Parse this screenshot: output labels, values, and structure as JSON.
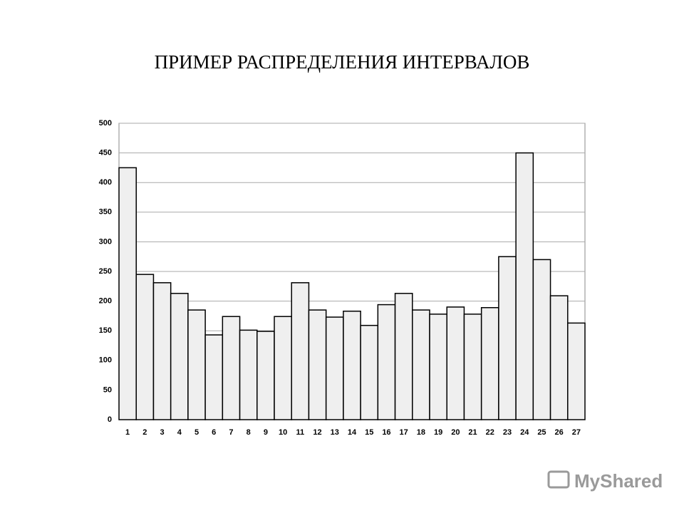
{
  "chart_data": {
    "type": "bar",
    "title": "ПРИМЕР РАСПРЕДЕЛЕНИЯ ИНТЕРВАЛОВ",
    "categories": [
      "1",
      "2",
      "3",
      "4",
      "5",
      "6",
      "7",
      "8",
      "9",
      "10",
      "11",
      "12",
      "13",
      "14",
      "15",
      "16",
      "17",
      "18",
      "19",
      "20",
      "21",
      "22",
      "23",
      "24",
      "25",
      "26",
      "27"
    ],
    "values": [
      425,
      245,
      231,
      213,
      185,
      143,
      174,
      151,
      149,
      174,
      231,
      185,
      173,
      183,
      159,
      194,
      213,
      185,
      178,
      190,
      178,
      189,
      275,
      450,
      270,
      209,
      163
    ],
    "color": "#efefef",
    "ylim": [
      0,
      500
    ],
    "yticks": [
      0,
      50,
      100,
      150,
      200,
      250,
      300,
      350,
      400,
      450,
      500
    ],
    "grid": true
  },
  "watermark": "MyShared"
}
